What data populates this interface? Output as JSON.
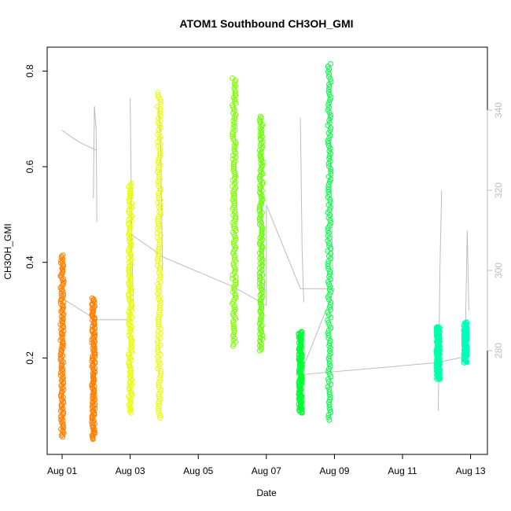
{
  "chart_data": {
    "type": "scatter",
    "title": "ATOM1 Southbound CH3OH_GMI",
    "xlabel": "Date",
    "ylabel": "CH3OH_GMI",
    "x_range_days": [
      0.0,
      12.6
    ],
    "x_ticks": [
      "Aug 01",
      "Aug 03",
      "Aug 05",
      "Aug 07",
      "Aug 09",
      "Aug 11",
      "Aug 13"
    ],
    "ylim": [
      0.0,
      0.85
    ],
    "y_ticks": [
      0.2,
      0.4,
      0.6,
      0.8
    ],
    "y2lim": [
      254.3,
      355.7
    ],
    "y2_ticks": [
      280,
      300,
      320,
      340
    ],
    "line_color": "#bdbdbd",
    "grid": false,
    "legend": "none",
    "series": [
      {
        "x_day": 0.0,
        "y_min": 0.035,
        "y_max": 0.415,
        "color": "#ff7f00",
        "y2_line": [
          [
            0.0,
            335
          ],
          [
            0.15,
            334
          ],
          [
            0.5,
            332
          ],
          [
            1.0,
            330
          ]
        ]
      },
      {
        "x_day": 0.92,
        "y_min": 0.03,
        "y_max": 0.325,
        "color": "#ff7f00",
        "y2_line": [
          [
            0.92,
            318
          ],
          [
            0.95,
            341
          ],
          [
            1.0,
            335
          ],
          [
            1.02,
            312
          ]
        ]
      },
      {
        "x_day": 2.0,
        "y_min": 0.085,
        "y_max": 0.565,
        "color": "#e6ff00",
        "y2_line": [
          [
            2.0,
            343
          ],
          [
            2.05,
            305
          ],
          [
            2.1,
            290
          ]
        ]
      },
      {
        "x_day": 2.85,
        "y_min": 0.075,
        "y_max": 0.755,
        "color": "#e6ff00",
        "y2_line": [
          [
            2.85,
            340
          ],
          [
            2.9,
            330
          ],
          [
            2.95,
            300
          ]
        ]
      },
      {
        "x_day": 5.05,
        "y_min": 0.225,
        "y_max": 0.785,
        "color": "#7fff00",
        "y2_line": [
          [
            5.05,
            345
          ],
          [
            5.1,
            330
          ],
          [
            5.15,
            310
          ]
        ]
      },
      {
        "x_day": 5.85,
        "y_min": 0.215,
        "y_max": 0.705,
        "color": "#66ff00",
        "y2_line": [
          [
            5.85,
            325
          ],
          [
            5.9,
            310
          ],
          [
            5.95,
            295
          ]
        ]
      },
      {
        "x_day": 7.0,
        "y_min": 0.085,
        "y_max": 0.255,
        "color": "#00ff33",
        "y2_line": [
          [
            7.0,
            338
          ],
          [
            7.05,
            305
          ],
          [
            7.1,
            292
          ]
        ]
      },
      {
        "x_day": 7.85,
        "y_min": 0.07,
        "y_max": 0.815,
        "color": "#00ff44",
        "y2_line": [
          [
            7.85,
            345
          ],
          [
            7.9,
            320
          ],
          [
            7.95,
            300
          ]
        ]
      },
      {
        "x_day": 11.05,
        "y_min": 0.155,
        "y_max": 0.265,
        "color": "#00ffaa",
        "y2_line": [
          [
            11.05,
            265
          ],
          [
            11.1,
            300
          ],
          [
            11.15,
            320
          ]
        ]
      },
      {
        "x_day": 11.85,
        "y_min": 0.19,
        "y_max": 0.275,
        "color": "#00ffbb",
        "y2_line": [
          [
            11.85,
            285
          ],
          [
            11.9,
            310
          ],
          [
            11.95,
            290
          ]
        ]
      }
    ],
    "connector_line": [
      [
        0.0,
        0.325
      ],
      [
        1.0,
        0.28
      ],
      [
        2.0,
        0.28
      ],
      [
        2.0,
        0.46
      ],
      [
        3.0,
        0.41
      ],
      [
        5.0,
        0.35
      ],
      [
        6.0,
        0.31
      ],
      [
        6.0,
        0.52
      ],
      [
        7.0,
        0.345
      ],
      [
        8.0,
        0.345
      ],
      [
        7.0,
        0.165
      ],
      [
        11.0,
        0.19
      ],
      [
        12.0,
        0.205
      ]
    ]
  }
}
